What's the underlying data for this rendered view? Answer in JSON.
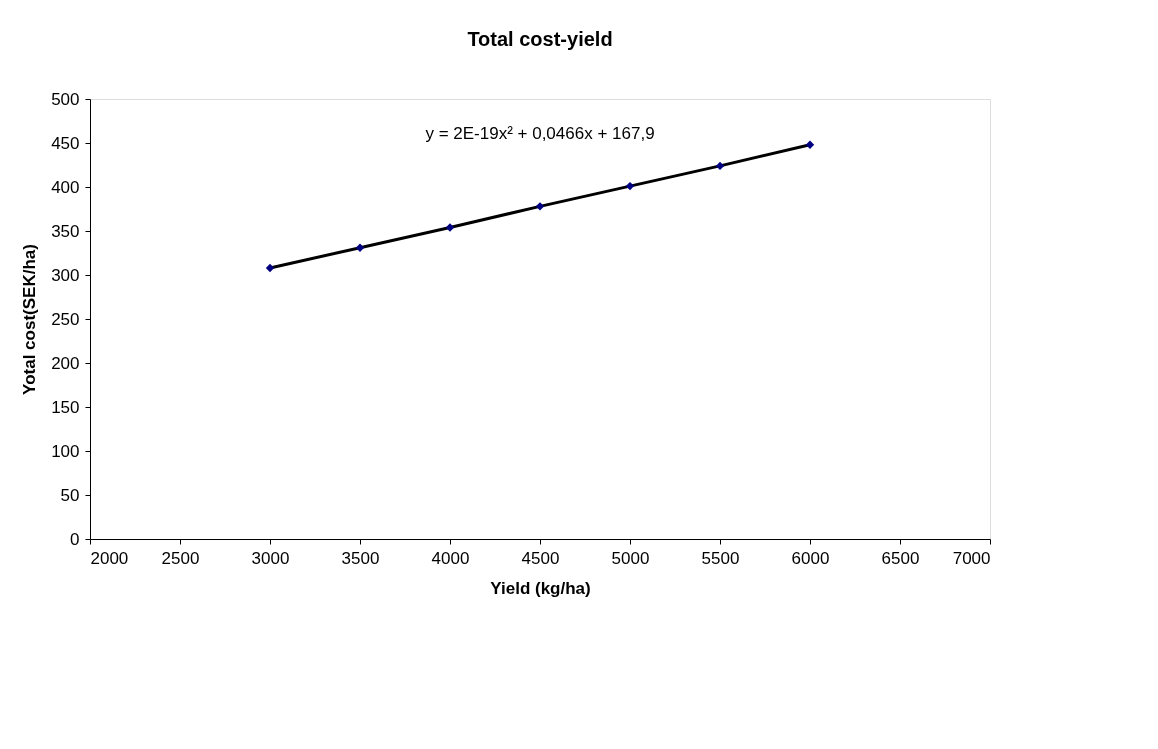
{
  "chart_data": {
    "type": "scatter",
    "title": "Total cost-yield",
    "xlabel": "Yield (kg/ha)",
    "ylabel": "Yotal cost(SEK/ha)",
    "x": [
      3000,
      3500,
      4000,
      4500,
      5000,
      5500,
      6000
    ],
    "series": [
      {
        "color": "#000080",
        "marker": "diamond",
        "values": [
          308,
          331,
          354,
          378,
          401,
          424,
          448
        ]
      },
      {
        "type": "line",
        "color": "#000000",
        "marker": "none",
        "line_style": "solid",
        "x": [
          3000,
          3500,
          4000,
          4500,
          5000,
          5500,
          6000
        ],
        "values": [
          308,
          331,
          354,
          378,
          401,
          424,
          448
        ]
      }
    ],
    "xlim": [
      2000,
      7000
    ],
    "xticks": [
      2000,
      2500,
      3000,
      3500,
      4000,
      4500,
      5000,
      5500,
      6000,
      6500,
      7000
    ],
    "ylim": [
      0,
      500
    ],
    "yticks": [
      0,
      50,
      100,
      150,
      200,
      250,
      300,
      350,
      400,
      450,
      500
    ],
    "annotations": [
      "y = 2E-19x² + 0,0466x + 167,9"
    ],
    "grid": false
  }
}
